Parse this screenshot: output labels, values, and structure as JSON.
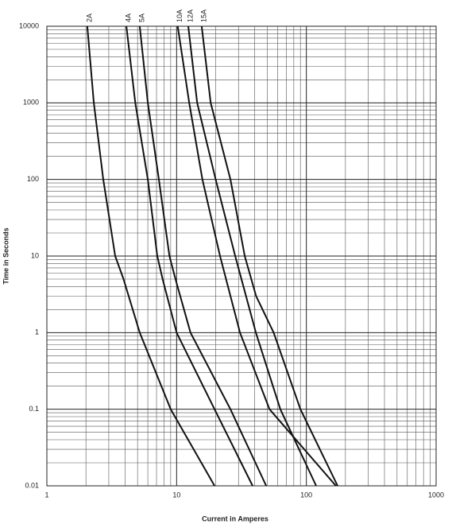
{
  "chart_data": {
    "type": "line",
    "x_label": "Current in Amperes",
    "y_label": "Time in Seconds",
    "x_log": true,
    "y_log": true,
    "grid": true,
    "minor_grid": true,
    "xlim": [
      1,
      1000
    ],
    "xticks": [
      1,
      10,
      100,
      1000
    ],
    "ylim": [
      0.01,
      10000
    ],
    "yticks": [
      0.01,
      0.1,
      1,
      10,
      100,
      1000,
      10000
    ],
    "series": [
      {
        "name": "2A",
        "color": "#111111",
        "x": [
          2.05,
          2.3,
          2.72,
          3.36,
          3.9,
          5.2,
          9,
          19.6
        ],
        "values": [
          10000,
          1000,
          100,
          10,
          5,
          1,
          0.1,
          0.01
        ]
      },
      {
        "name": "4A",
        "color": "#111111",
        "x": [
          4.1,
          4.8,
          6.0,
          7.1,
          7.8,
          10,
          19.6,
          38.5
        ],
        "values": [
          10000,
          1000,
          100,
          10,
          5,
          1,
          0.1,
          0.01
        ]
      },
      {
        "name": "5A",
        "color": "#111111",
        "x": [
          5.2,
          6.0,
          7.3,
          8.8,
          9.8,
          12.8,
          26,
          49
        ],
        "values": [
          10000,
          1000,
          100,
          10,
          5,
          1,
          0.1,
          0.01
        ]
      },
      {
        "name": "10A",
        "color": "#111111",
        "x": [
          10.2,
          12.5,
          15.8,
          21.6,
          30.8,
          52,
          169
        ],
        "values": [
          10000,
          1000,
          100,
          10,
          1,
          0.1,
          0.01
        ]
      },
      {
        "name": "12A",
        "color": "#111111",
        "x": [
          12.3,
          14.4,
          20,
          28.3,
          40.8,
          63,
          119
        ],
        "values": [
          10000,
          1000,
          100,
          10,
          1,
          0.1,
          0.01
        ]
      },
      {
        "name": "15A",
        "color": "#111111",
        "x": [
          15.6,
          18.3,
          26,
          33.5,
          41,
          56,
          90,
          174
        ],
        "values": [
          10000,
          1000,
          100,
          10,
          3,
          1,
          0.1,
          0.01
        ]
      }
    ]
  }
}
